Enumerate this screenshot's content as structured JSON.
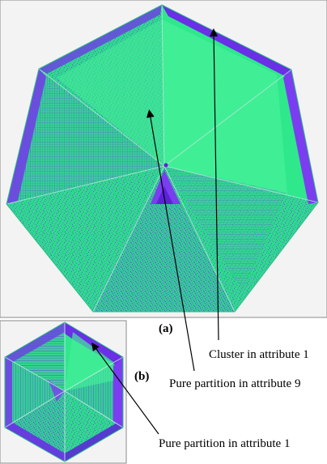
{
  "panels": {
    "a": {
      "label": "(a)"
    },
    "b": {
      "label": "(b)"
    }
  },
  "annotations": {
    "cluster_attr1": "Cluster in attribute 1",
    "pure_partition_attr9": "Pure partition in attribute 9",
    "pure_partition_attr1": "Pure partition in attribute 1"
  },
  "colors": {
    "green": "#2fe88c",
    "green_light": "#43ee98",
    "green_dark": "#1fbf88",
    "purple": "#7a3df0",
    "purple_dark": "#5b22d8",
    "noise_blue": "#4a78c8",
    "background_a": "#f3f3f3",
    "background_b": "#f3f3f3",
    "arrow": "#000000"
  }
}
